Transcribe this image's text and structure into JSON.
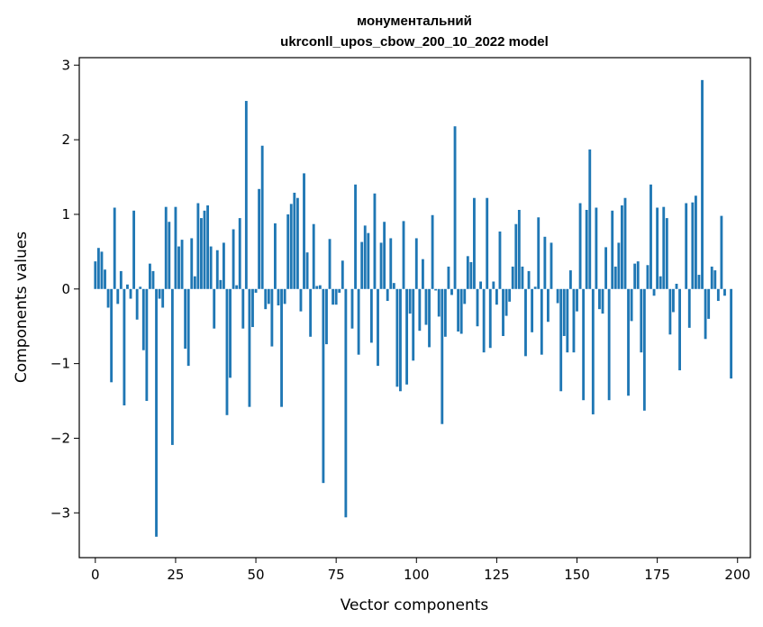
{
  "chart_data": {
    "type": "bar",
    "title_line1": "монументальний",
    "title_line2": "ukrconll_upos_cbow_200_10_2022 model",
    "xlabel": "Vector components",
    "ylabel": "Components values",
    "xlim": [
      -5,
      204
    ],
    "ylim": [
      -3.6,
      3.1
    ],
    "xticks": [
      0,
      25,
      50,
      75,
      100,
      125,
      150,
      175,
      200
    ],
    "yticks": [
      -3,
      -2,
      -1,
      0,
      1,
      2,
      3
    ],
    "bar_color": "#1f77b4",
    "grid": false,
    "values": [
      0.37,
      0.55,
      0.5,
      0.26,
      -0.25,
      -1.25,
      1.09,
      -0.2,
      0.24,
      -1.56,
      0.06,
      -0.13,
      1.05,
      -0.41,
      0.03,
      -0.82,
      -1.5,
      0.34,
      0.24,
      -3.32,
      -0.13,
      -0.25,
      1.1,
      0.9,
      -2.09,
      1.1,
      0.57,
      0.66,
      -0.8,
      -1.03,
      0.68,
      0.17,
      1.15,
      0.95,
      1.05,
      1.12,
      0.57,
      -0.53,
      0.52,
      0.12,
      0.62,
      -1.69,
      -1.19,
      0.8,
      0.05,
      0.95,
      -0.53,
      2.52,
      -1.58,
      -0.51,
      -0.05,
      1.34,
      1.92,
      -0.27,
      -0.2,
      -0.77,
      0.88,
      -0.22,
      -1.58,
      -0.2,
      1.0,
      1.14,
      1.29,
      1.22,
      -0.3,
      1.55,
      0.49,
      -0.64,
      0.87,
      0.04,
      0.05,
      -2.6,
      -0.74,
      0.67,
      -0.21,
      -0.21,
      -0.05,
      0.38,
      -3.06,
      0.0,
      -0.53,
      1.4,
      -0.88,
      0.63,
      0.85,
      0.75,
      -0.72,
      1.28,
      -1.03,
      0.62,
      0.9,
      -0.16,
      0.68,
      0.08,
      -1.31,
      -1.37,
      0.91,
      -1.28,
      -0.33,
      -0.96,
      0.68,
      -0.56,
      0.4,
      -0.48,
      -0.78,
      0.99,
      -0.02,
      -0.37,
      -1.81,
      -0.64,
      0.3,
      -0.08,
      2.18,
      -0.57,
      -0.6,
      -0.2,
      0.44,
      0.36,
      1.22,
      -0.5,
      0.1,
      -0.85,
      1.22,
      -0.79,
      0.1,
      -0.21,
      0.77,
      -0.63,
      -0.36,
      -0.17,
      0.3,
      0.87,
      1.06,
      0.3,
      -0.9,
      0.24,
      -0.58,
      0.03,
      0.96,
      -0.88,
      0.7,
      -0.44,
      0.62,
      0.0,
      -0.19,
      -1.37,
      -0.63,
      -0.85,
      0.25,
      -0.85,
      -0.3,
      1.15,
      -1.49,
      1.06,
      1.87,
      -1.68,
      1.09,
      -0.27,
      -0.33,
      0.56,
      -1.49,
      1.05,
      0.3,
      0.62,
      1.12,
      1.22,
      -1.43,
      -0.43,
      0.34,
      0.37,
      -0.85,
      -1.63,
      0.32,
      1.4,
      -0.09,
      1.09,
      0.17,
      1.1,
      0.95,
      -0.61,
      -0.31,
      0.07,
      -1.09,
      0.0,
      1.15,
      -0.52,
      1.16,
      1.25,
      0.19,
      2.8,
      -0.67,
      -0.4,
      0.3,
      0.25,
      -0.16,
      0.98,
      -0.09,
      0.0,
      -1.2
    ]
  }
}
